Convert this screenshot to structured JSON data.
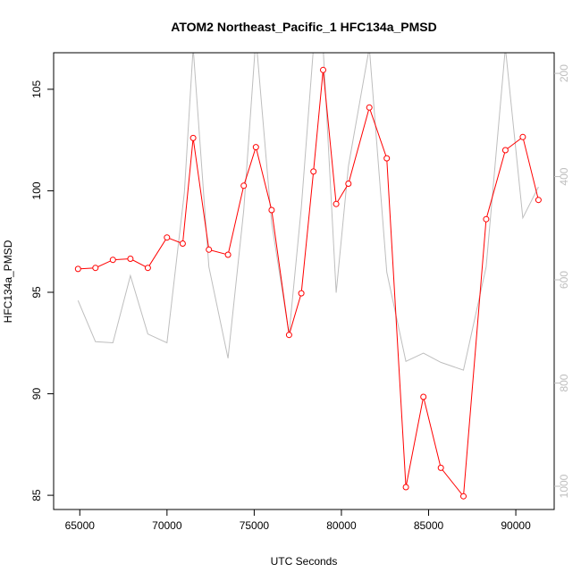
{
  "chart_data": {
    "type": "line",
    "title": "ATOM2 Northeast_Pacific_1 HFC134a_PMSD",
    "xlabel": "UTC Seconds",
    "ylabel": "HFC134a_PMSD",
    "xlim": [
      63500,
      92200
    ],
    "ylim": [
      84.3,
      106.8
    ],
    "y2lim": [
      1045,
      160
    ],
    "x_ticks": [
      65000,
      70000,
      75000,
      80000,
      85000,
      90000
    ],
    "y_ticks": [
      85,
      90,
      95,
      100,
      105
    ],
    "y2_ticks": [
      200,
      400,
      600,
      800,
      1000
    ],
    "grid": false,
    "series": [
      {
        "axis": "left",
        "color": "#ff0000",
        "marker": "open-circle",
        "x": [
          64900,
          65900,
          66900,
          67900,
          68900,
          70000,
          70900,
          71500,
          72400,
          73500,
          74400,
          75100,
          76000,
          77000,
          77700,
          78400,
          78950,
          79700,
          80400,
          81600,
          82600,
          83700,
          84700,
          85700,
          87000,
          88300,
          89400,
          90400,
          91300
        ],
        "values": [
          96.15,
          96.2,
          96.6,
          96.65,
          96.2,
          97.7,
          97.4,
          102.6,
          97.1,
          96.85,
          100.25,
          102.15,
          99.05,
          92.9,
          94.95,
          100.95,
          105.95,
          99.35,
          100.35,
          104.1,
          101.6,
          85.4,
          89.85,
          86.35,
          84.95,
          98.6,
          102.0,
          102.65,
          99.55
        ]
      },
      {
        "axis": "right",
        "color": "#bebebe",
        "marker": "none",
        "x": [
          64900,
          65900,
          66900,
          67900,
          68900,
          70000,
          71000,
          71500,
          72400,
          73500,
          74400,
          75100,
          76000,
          77000,
          77700,
          78400,
          78950,
          79700,
          80400,
          81600,
          82600,
          83700,
          84700,
          85700,
          87000,
          88300,
          89400,
          90400,
          91300
        ],
        "values": [
          640,
          720,
          722,
          592,
          705,
          722,
          430,
          150,
          575,
          752,
          465,
          130,
          490,
          705,
          460,
          150,
          150,
          625,
          380,
          150,
          585,
          758,
          742,
          760,
          775,
          575,
          150,
          480,
          420
        ]
      }
    ]
  }
}
